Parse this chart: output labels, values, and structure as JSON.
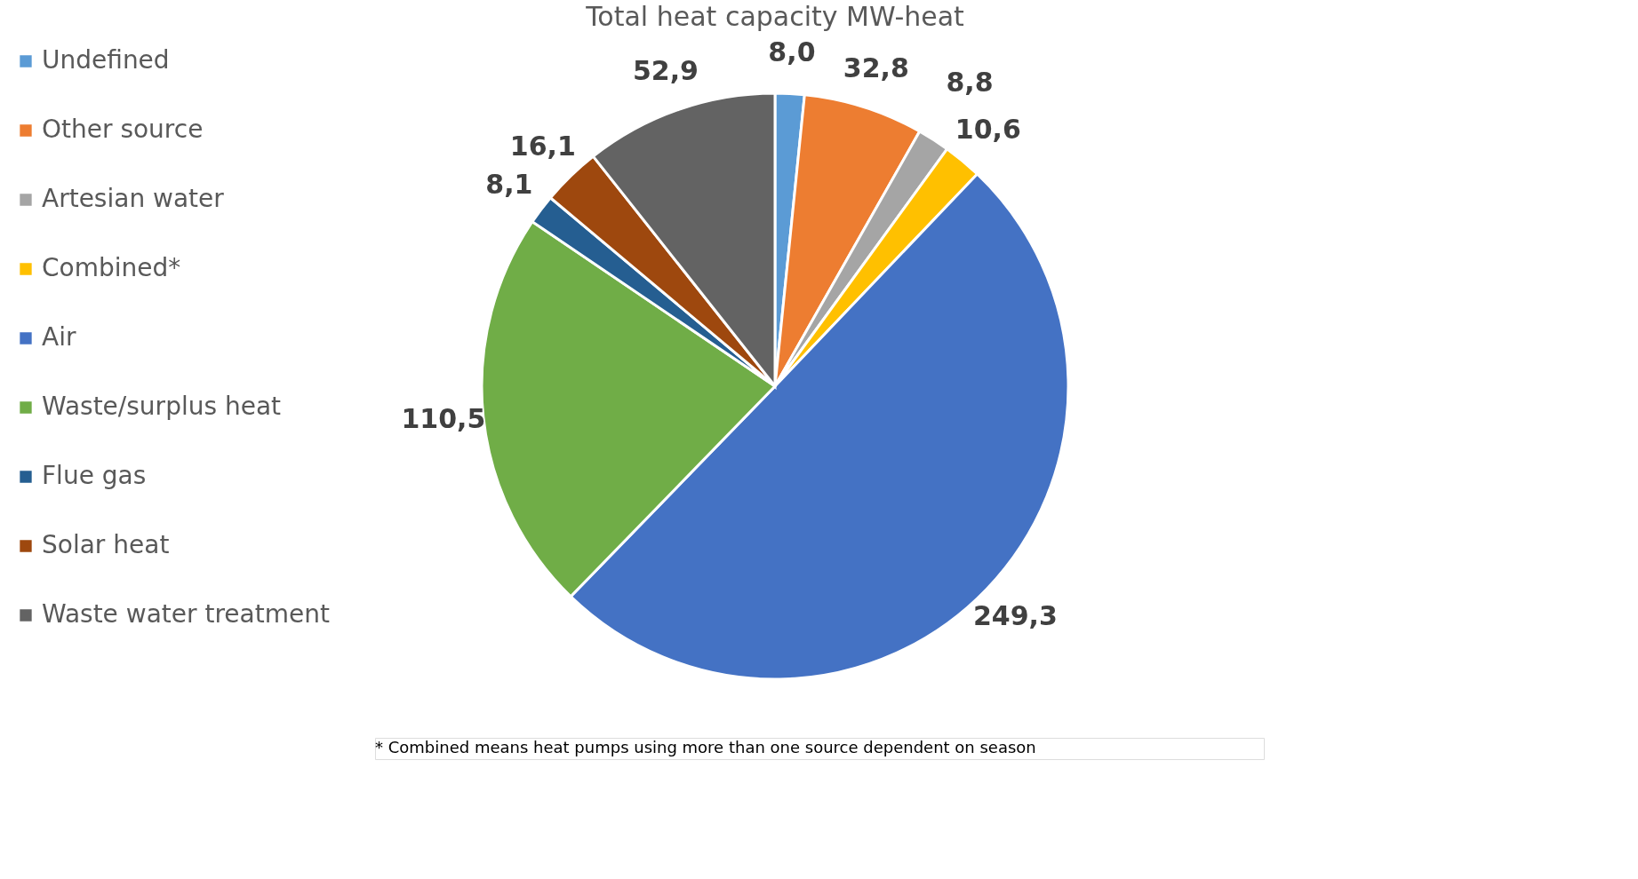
{
  "chart_data": {
    "type": "pie",
    "title": "Total heat capacity MW-heat",
    "categories": [
      "Undefined",
      "Other source",
      "Artesian water",
      "Combined*",
      "Air",
      "Waste/surplus heat",
      "Flue gas",
      "Solar heat",
      "Waste water treatment"
    ],
    "values": [
      8.0,
      32.8,
      8.8,
      10.6,
      249.3,
      110.5,
      8.1,
      16.1,
      52.9
    ],
    "value_labels": [
      "8,0",
      "32,8",
      "8,8",
      "10,6",
      "249,3",
      "110,5",
      "8,1",
      "16,1",
      "52,9"
    ],
    "colors": [
      "#5b9bd5",
      "#ed7d31",
      "#a5a5a5",
      "#ffc000",
      "#4472c4",
      "#70ad47",
      "#255e91",
      "#9e480e",
      "#636363"
    ],
    "legend": "left",
    "annotations": [
      "* Combined means heat pumps using more than one source dependent on season"
    ]
  }
}
